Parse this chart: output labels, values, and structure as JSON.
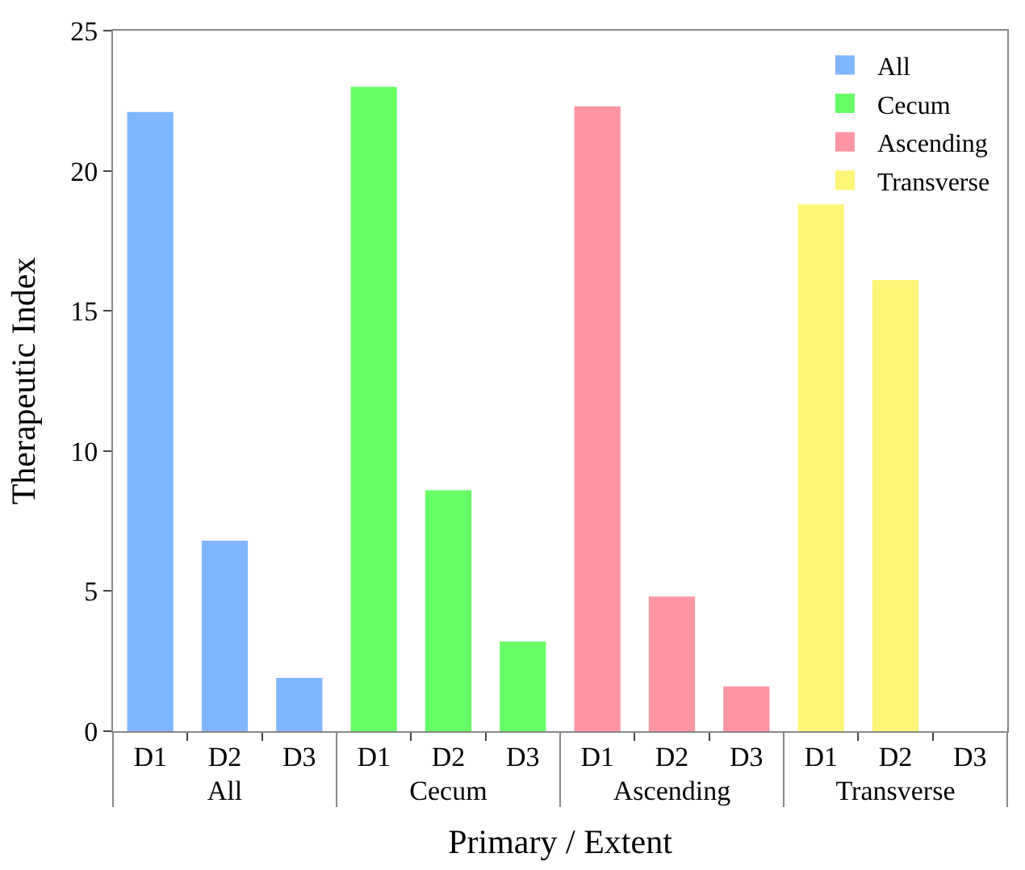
{
  "chart_data": {
    "type": "bar",
    "xlabel": "Primary / Extent",
    "ylabel": "Therapeutic Index",
    "categories": [
      "D1",
      "D2",
      "D3",
      "D1",
      "D2",
      "D3",
      "D1",
      "D2",
      "D3",
      "D1",
      "D2",
      "D3"
    ],
    "series": [
      {
        "name": "All",
        "color": "#7fb6ff",
        "values": [
          22.1,
          6.8,
          1.9,
          null,
          null,
          null,
          null,
          null,
          null,
          null,
          null,
          null
        ]
      },
      {
        "name": "Cecum",
        "color": "#66ff66",
        "values": [
          null,
          null,
          null,
          23.0,
          8.6,
          3.2,
          null,
          null,
          null,
          null,
          null,
          null
        ]
      },
      {
        "name": "Ascending",
        "color": "#ff95a3",
        "values": [
          null,
          null,
          null,
          null,
          null,
          null,
          22.3,
          4.8,
          1.6,
          null,
          null,
          null
        ]
      },
      {
        "name": "Transverse",
        "color": "#fff577",
        "values": [
          null,
          null,
          null,
          null,
          null,
          null,
          null,
          null,
          null,
          18.8,
          16.1,
          0
        ]
      }
    ],
    "ylim": [
      0,
      25
    ],
    "yticks": [
      0,
      5,
      10,
      15,
      20,
      25
    ],
    "legend": "top right"
  }
}
